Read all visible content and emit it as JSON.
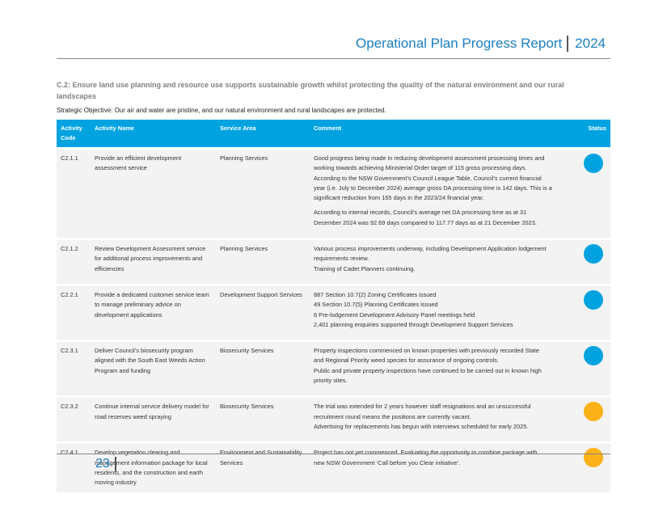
{
  "header": {
    "title": "Operational Plan Progress Report",
    "year": "2024"
  },
  "section_title": "C.2: Ensure land use planning and resource use supports sustainable growth whilst protecting the quality of the natural environment and our rural landscapes",
  "objective": "Strategic Objective: Our air and water are pristine, and our natural environment and rural landscapes are protected.",
  "table": {
    "headers": [
      "Activity Code",
      "Activity Name",
      "Service Area",
      "Comment",
      "Status"
    ],
    "rows": [
      {
        "code": "C2.1.1",
        "name": "Provide an efficient development assessment service",
        "service": "Planning Services",
        "comment": [
          [
            "Good progress being made in reducing development assessment processing times and",
            "working towards achieving Ministerial Order target of 115 gross processing days.",
            "According to the NSW Government’s Council League Table, Council’s current financial",
            "year (i.e. July to December 2024) average gross DA processing time is 142 days. This is a",
            "significant reduction from 165 days in the 2023/24 financial year."
          ],
          [
            "According to internal records, Council’s average net DA processing time as at 31",
            "December 2024 was 92.69 days compared to 117.77 days as at 21 December 2023."
          ]
        ],
        "status_color": "#00a3e0"
      },
      {
        "code": "C2.1.2",
        "name": "Review Development Assessment service for additional process improvements and efficiencies",
        "service": "Planning Services",
        "comment": [
          [
            "Various process improvements underway, including Development Application lodgement",
            "requirements review.",
            "Training of Cadet Planners continuing."
          ]
        ],
        "status_color": "#00a3e0"
      },
      {
        "code": "C2.2.1",
        "name": "Provide a dedicated customer service team to manage preliminary advice on development applications",
        "service": "Development Support Services",
        "comment": [
          [
            "887 Section 10.7(2) Zoning Certificates issued",
            "49 Section 10.7(5) Planning Certificates issued",
            "6 Pre-lodgement Development Advisory Panel meetings held",
            "2,401 planning enquiries supported through Development Support Services"
          ]
        ],
        "status_color": "#00a3e0"
      },
      {
        "code": "C2.3.1",
        "name": "Deliver Council’s biosecurity program aligned with the South East Weeds Action Program and funding",
        "service": "Biosecurity Services",
        "comment": [
          [
            "Property inspections commenced on known properties with previously recorded State",
            "and Regional Priority weed species for assurance of ongoing controls.",
            "Public and private property inspections have continued to be carried out in known high",
            "priority sites."
          ]
        ],
        "status_color": "#00a3e0"
      },
      {
        "code": "C2.3.2",
        "name": "Continue internal service delivery model for road reserves weed spraying",
        "service": "Biosecurity Services",
        "comment": [
          [
            "The trial was extended for 2 years however staff resignations and an unsuccessful",
            "recruitment round means the positions are currently vacant.",
            "Advertising for replacements has begun with interviews scheduled for early 2025."
          ]
        ],
        "status_color": "#fbb117"
      },
      {
        "code": "C2.4.1",
        "name": "Develop vegetation clearing and management information package for local residents, and the construction and earth moving industry",
        "service": "Environment and Sustainability Services",
        "comment": [
          [
            "Project has not yet commenced. Evaluating the opportunity to combine package with",
            "new NSW Government ‘Call before you Clear initiative’."
          ]
        ],
        "status_color": "#fbb117"
      }
    ]
  },
  "footer": {
    "page": "23"
  }
}
